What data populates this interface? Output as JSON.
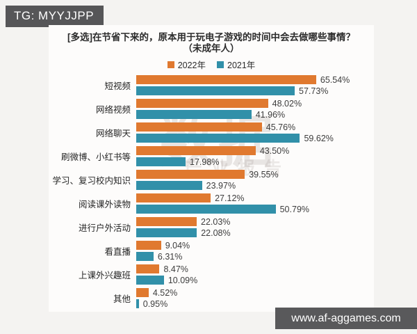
{
  "page": {
    "badge": "TG: MYYJJPP",
    "site": "www.af-aggames.com",
    "watermark_large": "数据",
    "watermark_small": "产业报告"
  },
  "chart_data": {
    "type": "bar",
    "orientation": "horizontal",
    "title": "[多选]在节省下来的，原本用于玩电子游戏的时间中会去做哪些事情？",
    "subtitle": "（未成年人）",
    "legend_position": "top",
    "grid": false,
    "xlim": [
      0,
      70
    ],
    "value_suffix": "%",
    "categories": [
      "短视频",
      "网络视频",
      "网络聊天",
      "刷微博、小红书等",
      "学习、复习校内知识",
      "阅读课外读物",
      "进行户外活动",
      "看直播",
      "上课外兴趣班",
      "其他"
    ],
    "series": [
      {
        "name": "2022年",
        "color": "#E0792F",
        "values": [
          65.54,
          48.02,
          45.76,
          43.5,
          39.55,
          27.12,
          22.03,
          9.04,
          8.47,
          4.52
        ]
      },
      {
        "name": "2021年",
        "color": "#3190A9",
        "values": [
          57.73,
          41.96,
          59.62,
          17.98,
          23.97,
          50.79,
          22.08,
          6.31,
          10.09,
          0.95
        ]
      }
    ]
  }
}
